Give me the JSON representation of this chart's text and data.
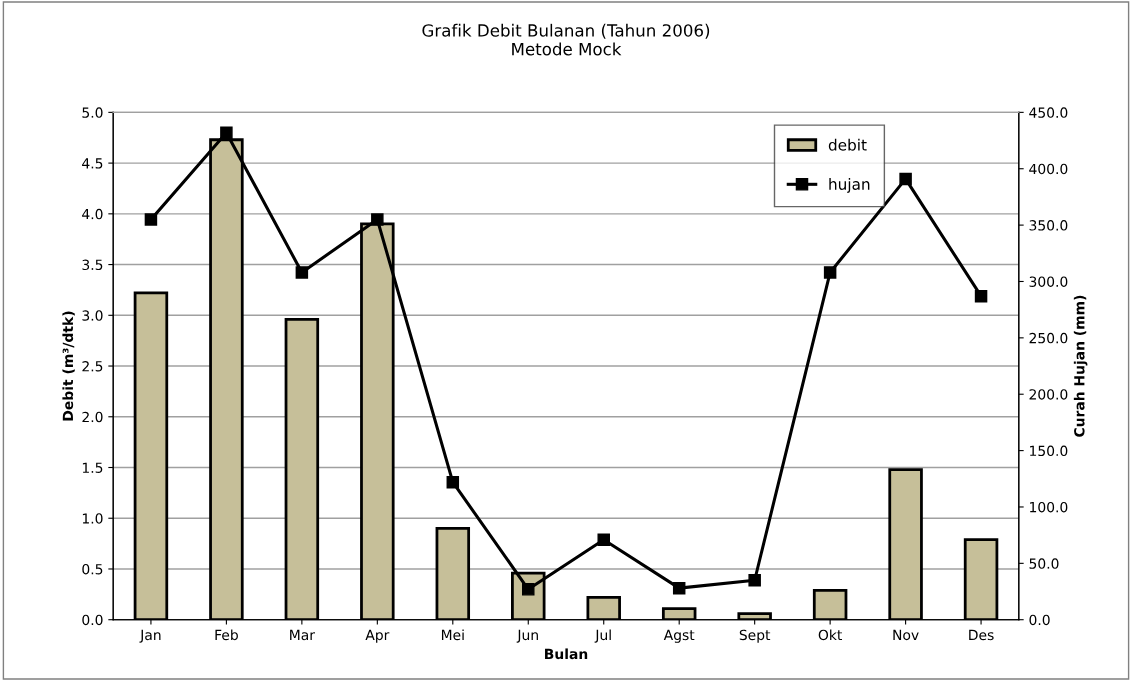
{
  "chart_data": {
    "type": "bar",
    "title": "Grafik Debit Bulanan (Tahun 2006)",
    "subtitle": "Metode Mock",
    "xlabel": "Bulan",
    "ylabel": "Debit (m³/dtk)",
    "y2label": "Curah Hujan (mm)",
    "categories": [
      "Jan",
      "Feb",
      "Mar",
      "Apr",
      "Mei",
      "Jun",
      "Jul",
      "Agst",
      "Sept",
      "Okt",
      "Nov",
      "Des"
    ],
    "series": [
      {
        "name": "debit",
        "color": "#c6bf99",
        "values": [
          3.22,
          4.73,
          2.96,
          3.9,
          0.9,
          0.46,
          0.22,
          0.11,
          0.06,
          0.29,
          1.48,
          0.79
        ]
      },
      {
        "name": "hujan",
        "type": "line",
        "axis": "y2",
        "color": "#000000",
        "marker": "square",
        "values": [
          355,
          432,
          308,
          355,
          122,
          27,
          71,
          28,
          35,
          308,
          391,
          287
        ]
      }
    ],
    "ylim": [
      0,
      5
    ],
    "yticks": [
      {
        "value": 0,
        "label": "0.0"
      },
      {
        "value": 0.5,
        "label": "0.5"
      },
      {
        "value": 1,
        "label": "1.0"
      },
      {
        "value": 1.5,
        "label": "1.5"
      },
      {
        "value": 2,
        "label": "2.0"
      },
      {
        "value": 2.5,
        "label": "2.5"
      },
      {
        "value": 3,
        "label": "3.0"
      },
      {
        "value": 3.5,
        "label": "3.5"
      },
      {
        "value": 4,
        "label": "4.0"
      },
      {
        "value": 4.5,
        "label": "4.5"
      },
      {
        "value": 5,
        "label": "5.0"
      }
    ],
    "y2lim": [
      0,
      450
    ],
    "y2ticks": [
      {
        "value": 0,
        "label": "0.0"
      },
      {
        "value": 50,
        "label": "50.0"
      },
      {
        "value": 100,
        "label": "100.0"
      },
      {
        "value": 150,
        "label": "150.0"
      },
      {
        "value": 200,
        "label": "200.0"
      },
      {
        "value": 250,
        "label": "250.0"
      },
      {
        "value": 300,
        "label": "300.0"
      },
      {
        "value": 350,
        "label": "350.0"
      },
      {
        "value": 400,
        "label": "400.0"
      },
      {
        "value": 450,
        "label": "450.0"
      }
    ],
    "grid": "y",
    "legend": "top right"
  }
}
